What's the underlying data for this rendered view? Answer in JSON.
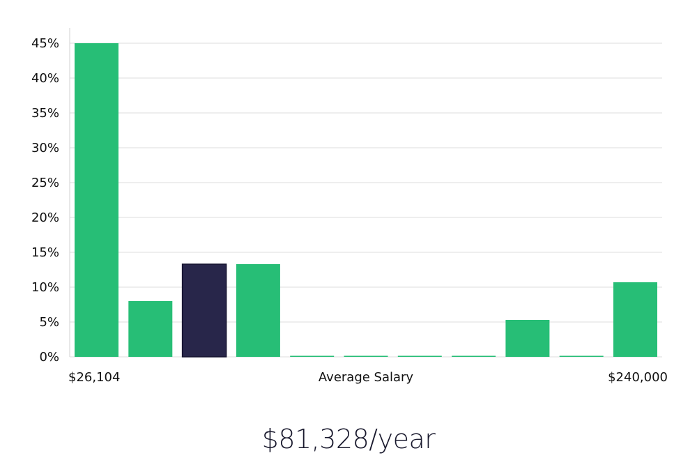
{
  "chart_data": {
    "type": "bar",
    "title": "",
    "xlabel": "Average Salary",
    "ylabel": "",
    "x_range_labels": {
      "min": "$26,104",
      "max": "$240,000"
    },
    "y_ticks": [
      "0%",
      "5%",
      "10%",
      "15%",
      "20%",
      "25%",
      "30%",
      "35%",
      "40%",
      "45%"
    ],
    "ylim": [
      0,
      45
    ],
    "grid": true,
    "values": [
      45,
      8,
      13.3,
      13.3,
      0,
      0,
      0,
      0,
      5.3,
      0,
      10.7
    ],
    "highlight_index": 2,
    "colors": {
      "bar": "#27be76",
      "highlight": "#28264a",
      "grid": "#dcdcdc",
      "axis": "#d0d0d0"
    }
  },
  "summary": {
    "salary": "$81,328/year"
  }
}
